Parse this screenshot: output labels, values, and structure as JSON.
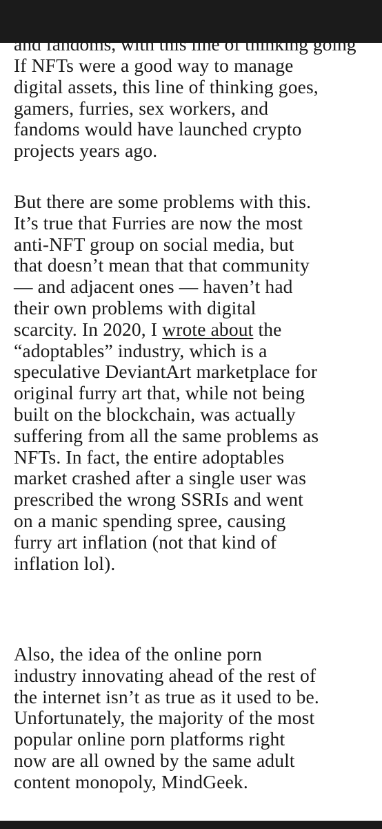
{
  "article": {
    "cut_line": "and fandoms, with this line of thinking going",
    "paragraphs": [
      {
        "text": "If NFTs were a good way to manage\ndigital assets, this line of thinking goes,\ngamers, furries, sex workers, and\nfandoms would have launched crypto\nprojects years ago."
      },
      {
        "text_before_link": "But there are some problems with this.\nIt’s true that Furries are now the most\nanti-NFT group on social media, but\nthat doesn’t mean that that community\n— and adjacent ones — haven’t had\ntheir own problems with digital\nscarcity. In 2020, I ",
        "link_text": "wrote about",
        "text_after_link": " the\n“adoptables” industry, which is a\nspeculative DeviantArt marketplace for\noriginal furry art that, while not being\nbuilt on the blockchain, was actually\nsuffering from all the same problems as\nNFTs. In fact, the entire adoptables\nmarket crashed after a single user was\nprescribed the wrong SSRIs and went\non a manic spending spree, causing\nfurry art inflation (not that kind of\ninflation lol)."
      },
      {
        "text": "Also, the idea of the online porn\nindustry innovating ahead of the rest of\nthe internet isn’t as true as it used to be.\nUnfortunately, the majority of the most\npopular online porn platforms right\nnow are all owned by the same adult\ncontent monopoly, MindGeek."
      }
    ]
  },
  "colors": {
    "background": "#ffffff",
    "text": "#1a1a1a",
    "chrome": "#1b1b1b"
  }
}
